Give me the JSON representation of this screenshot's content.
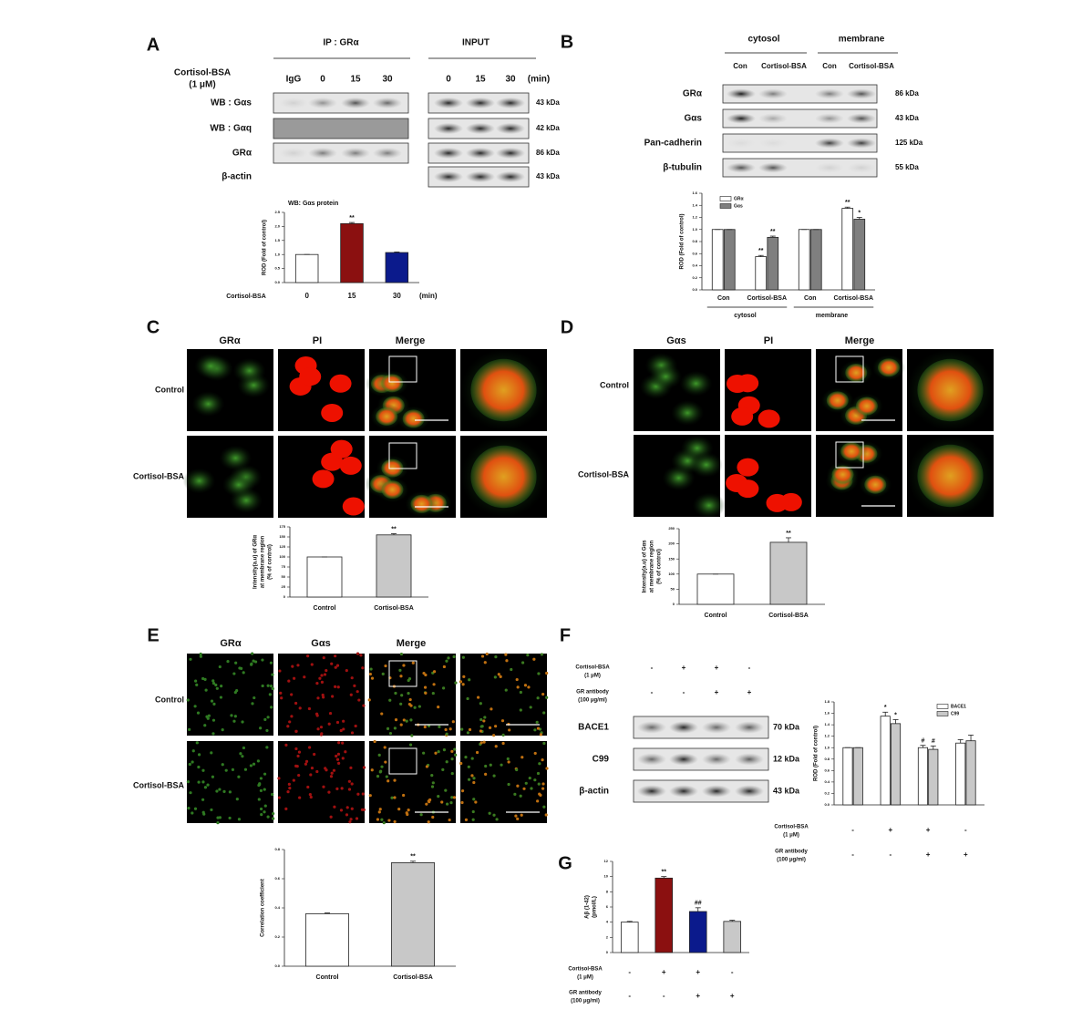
{
  "panels": {
    "A": {
      "label": "A",
      "ip_header": "IP : GRα",
      "input_header": "INPUT",
      "treatment": [
        "Cortisol-BSA",
        "(1 μM)"
      ],
      "ip_lanes": [
        "IgG",
        "0",
        "15",
        "30"
      ],
      "input_lanes": [
        "0",
        "15",
        "30"
      ],
      "lane_unit": "(min)",
      "rows": [
        "WB : Gαs",
        "WB : Gαq",
        "GRα",
        "β-actin"
      ],
      "kda": [
        "43 kDa",
        "42 kDa",
        "86 kDa",
        "43 kDa"
      ],
      "chart": {
        "type": "bar",
        "title": "WB: Gαs protein",
        "ylabel": [
          "ROD (Fold of control)"
        ],
        "xlabel": "Cortisol-BSA",
        "xunit": "(min)",
        "categories": [
          "0",
          "15",
          "30"
        ],
        "series": [
          {
            "colors": [
              "#ffffff",
              "#8b1010",
              "#0b1a8c"
            ],
            "values": [
              1.0,
              2.1,
              1.07
            ],
            "errors": [
              0,
              0.04,
              0.02
            ],
            "annotations": [
              null,
              "**",
              null
            ]
          }
        ],
        "ylim": [
          0,
          2.5
        ],
        "yticks": [
          {
            "value": 0,
            "label": "0.0"
          },
          {
            "value": 0.5,
            "label": "0.5"
          },
          {
            "value": 1,
            "label": "1.0"
          },
          {
            "value": 1.5,
            "label": "1.5"
          },
          {
            "value": 2,
            "label": "2.0"
          },
          {
            "value": 2.5,
            "label": "2.5"
          }
        ]
      }
    },
    "B": {
      "label": "B",
      "fractions": [
        "cytosol",
        "membrane"
      ],
      "lanes": [
        "Con",
        "Cortisol-BSA",
        "Con",
        "Cortisol-BSA"
      ],
      "rows": [
        "GRα",
        "Gαs",
        "Pan-cadherin",
        "β-tubulin"
      ],
      "kda": [
        "86 kDa",
        "43 kDa",
        "125 kDa",
        "55 kDa"
      ],
      "chart": {
        "type": "bar",
        "ylabel": [
          "ROD (Fold of control)"
        ],
        "categories": [
          "Con",
          "Cortisol-BSA",
          "Con",
          "Cortisol-BSA"
        ],
        "groups": [
          "cytosol",
          "membrane"
        ],
        "series": [
          {
            "name": "GRα",
            "color": "#ffffff",
            "values": [
              1.0,
              0.55,
              1.0,
              1.35
            ],
            "errors": [
              0,
              0.02,
              0,
              0.02
            ],
            "annotations": [
              null,
              "**",
              null,
              "**"
            ]
          },
          {
            "name": "Gαs",
            "color": "#7f7f7f",
            "values": [
              1.0,
              0.87,
              1.0,
              1.17
            ],
            "errors": [
              0,
              0.02,
              0,
              0.03
            ],
            "annotations": [
              null,
              "**",
              null,
              "*"
            ]
          }
        ],
        "ylim": [
          0,
          1.6
        ],
        "yticks": [
          {
            "value": 0,
            "label": "0.0"
          },
          {
            "value": 0.2,
            "label": "0.2"
          },
          {
            "value": 0.4,
            "label": "0.4"
          },
          {
            "value": 0.6,
            "label": "0.6"
          },
          {
            "value": 0.8,
            "label": "0.8"
          },
          {
            "value": 1,
            "label": "1.0"
          },
          {
            "value": 1.2,
            "label": "1.2"
          },
          {
            "value": 1.4,
            "label": "1.4"
          },
          {
            "value": 1.6,
            "label": "1.6"
          }
        ]
      }
    },
    "C": {
      "label": "C",
      "columns": [
        "GRα",
        "PI",
        "Merge"
      ],
      "rows": [
        "Control",
        "Cortisol-BSA"
      ],
      "chart": {
        "type": "bar",
        "ylabel": [
          "Intensity(a.u) of GRα",
          "at membrane region",
          "(% of control)"
        ],
        "categories": [
          "Control",
          "Cortisol-BSA"
        ],
        "series": [
          {
            "colors": [
              "#ffffff",
              "#c8c8c8"
            ],
            "values": [
              100,
              155
            ],
            "errors": [
              0,
              3
            ],
            "annotations": [
              null,
              "**"
            ]
          }
        ],
        "ylim": [
          0,
          175
        ],
        "yticks": [
          0,
          25,
          50,
          75,
          100,
          125,
          150,
          175
        ]
      }
    },
    "D": {
      "label": "D",
      "columns": [
        "Gαs",
        "PI",
        "Merge"
      ],
      "rows": [
        "Control",
        "Cortisol-BSA"
      ],
      "chart": {
        "type": "bar",
        "ylabel": [
          "Intensity(a.u) of Gαs",
          "at membrane region",
          "(% of control)"
        ],
        "categories": [
          "Control",
          "Cortisol-BSA"
        ],
        "series": [
          {
            "colors": [
              "#ffffff",
              "#c8c8c8"
            ],
            "values": [
              100,
              205
            ],
            "errors": [
              0,
              15
            ],
            "annotations": [
              null,
              "**"
            ]
          }
        ],
        "ylim": [
          0,
          250
        ],
        "yticks": [
          0,
          50,
          100,
          150,
          200,
          250
        ]
      }
    },
    "E": {
      "label": "E",
      "columns": [
        "GRα",
        "Gαs",
        "Merge"
      ],
      "rows": [
        "Control",
        "Cortisol-BSA"
      ],
      "chart": {
        "type": "bar",
        "ylabel": [
          "Correlation coefficient"
        ],
        "categories": [
          "Control",
          "Cortisol-BSA"
        ],
        "series": [
          {
            "colors": [
              "#ffffff",
              "#c8c8c8"
            ],
            "values": [
              0.36,
              0.71
            ],
            "errors": [
              0.005,
              0.01
            ],
            "annotations": [
              null,
              "**"
            ]
          }
        ],
        "ylim": [
          0,
          0.8
        ],
        "yticks": [
          {
            "value": 0,
            "label": "0.0"
          },
          {
            "value": 0.2,
            "label": "0.2"
          },
          {
            "value": 0.4,
            "label": "0.4"
          },
          {
            "value": 0.6,
            "label": "0.6"
          },
          {
            "value": 0.8,
            "label": "0.8"
          }
        ]
      }
    },
    "F": {
      "label": "F",
      "conditions": [
        {
          "label": [
            "Cortisol-BSA",
            "(1 μM)"
          ],
          "signs": [
            "-",
            "+",
            "+",
            "-"
          ]
        },
        {
          "label": [
            "GR antibody",
            "(100 μg/ml)"
          ],
          "signs": [
            "-",
            "-",
            "+",
            "+"
          ]
        }
      ],
      "rows": [
        "BACE1",
        "C99",
        "β-actin"
      ],
      "kda": [
        "70 kDa",
        "12 kDa",
        "43 kDa"
      ],
      "chart": {
        "type": "bar",
        "ylabel": [
          "ROD (Fold of control)"
        ],
        "series": [
          {
            "name": "BACE1",
            "color": "#ffffff",
            "values": [
              1.0,
              1.55,
              1.0,
              1.08
            ],
            "errors": [
              0,
              0.07,
              0.04,
              0.06
            ],
            "annotations": [
              null,
              "*",
              "#",
              null
            ]
          },
          {
            "name": "C99",
            "color": "#c8c8c8",
            "values": [
              1.0,
              1.42,
              0.97,
              1.12
            ],
            "errors": [
              0,
              0.07,
              0.06,
              0.1
            ],
            "annotations": [
              null,
              "*",
              "#",
              null
            ]
          }
        ],
        "ylim": [
          0,
          1.8
        ],
        "yticks": [
          {
            "value": 0,
            "label": "0.0"
          },
          {
            "value": 0.2,
            "label": "0.2"
          },
          {
            "value": 0.4,
            "label": "0.4"
          },
          {
            "value": 0.6,
            "label": "0.6"
          },
          {
            "value": 0.8,
            "label": "0.8"
          },
          {
            "value": 1,
            "label": "1.0"
          },
          {
            "value": 1.2,
            "label": "1.2"
          },
          {
            "value": 1.4,
            "label": "1.4"
          },
          {
            "value": 1.6,
            "label": "1.6"
          },
          {
            "value": 1.8,
            "label": "1.8"
          }
        ],
        "conditions": [
          {
            "label": [
              "Cortisol-BSA",
              "(1 μM)"
            ],
            "signs": [
              "-",
              "+",
              "+",
              "-"
            ]
          },
          {
            "label": [
              "GR antibody",
              "(100 μg/ml)"
            ],
            "signs": [
              "-",
              "-",
              "+",
              "+"
            ]
          }
        ]
      }
    },
    "G": {
      "label": "G",
      "chart": {
        "type": "bar",
        "ylabel": [
          "Aβ (1-42)",
          "(pmol/L)"
        ],
        "series": [
          {
            "colors": [
              "#ffffff",
              "#8b1010",
              "#0b1a8c",
              "#c8c8c8"
            ],
            "values": [
              4.0,
              9.8,
              5.4,
              4.1
            ],
            "errors": [
              0.1,
              0.2,
              0.5,
              0.15
            ],
            "annotations": [
              null,
              "**",
              "##",
              null
            ]
          }
        ],
        "ylim": [
          0,
          12
        ],
        "yticks": [
          0,
          2,
          4,
          6,
          8,
          10,
          12
        ],
        "conditions": [
          {
            "label": [
              "Cortisol-BSA",
              "(1 μM)"
            ],
            "signs": [
              "-",
              "+",
              "+",
              "-"
            ]
          },
          {
            "label": [
              "GR antibody",
              "(100 μg/ml)"
            ],
            "signs": [
              "-",
              "-",
              "+",
              "+"
            ]
          }
        ]
      }
    }
  }
}
